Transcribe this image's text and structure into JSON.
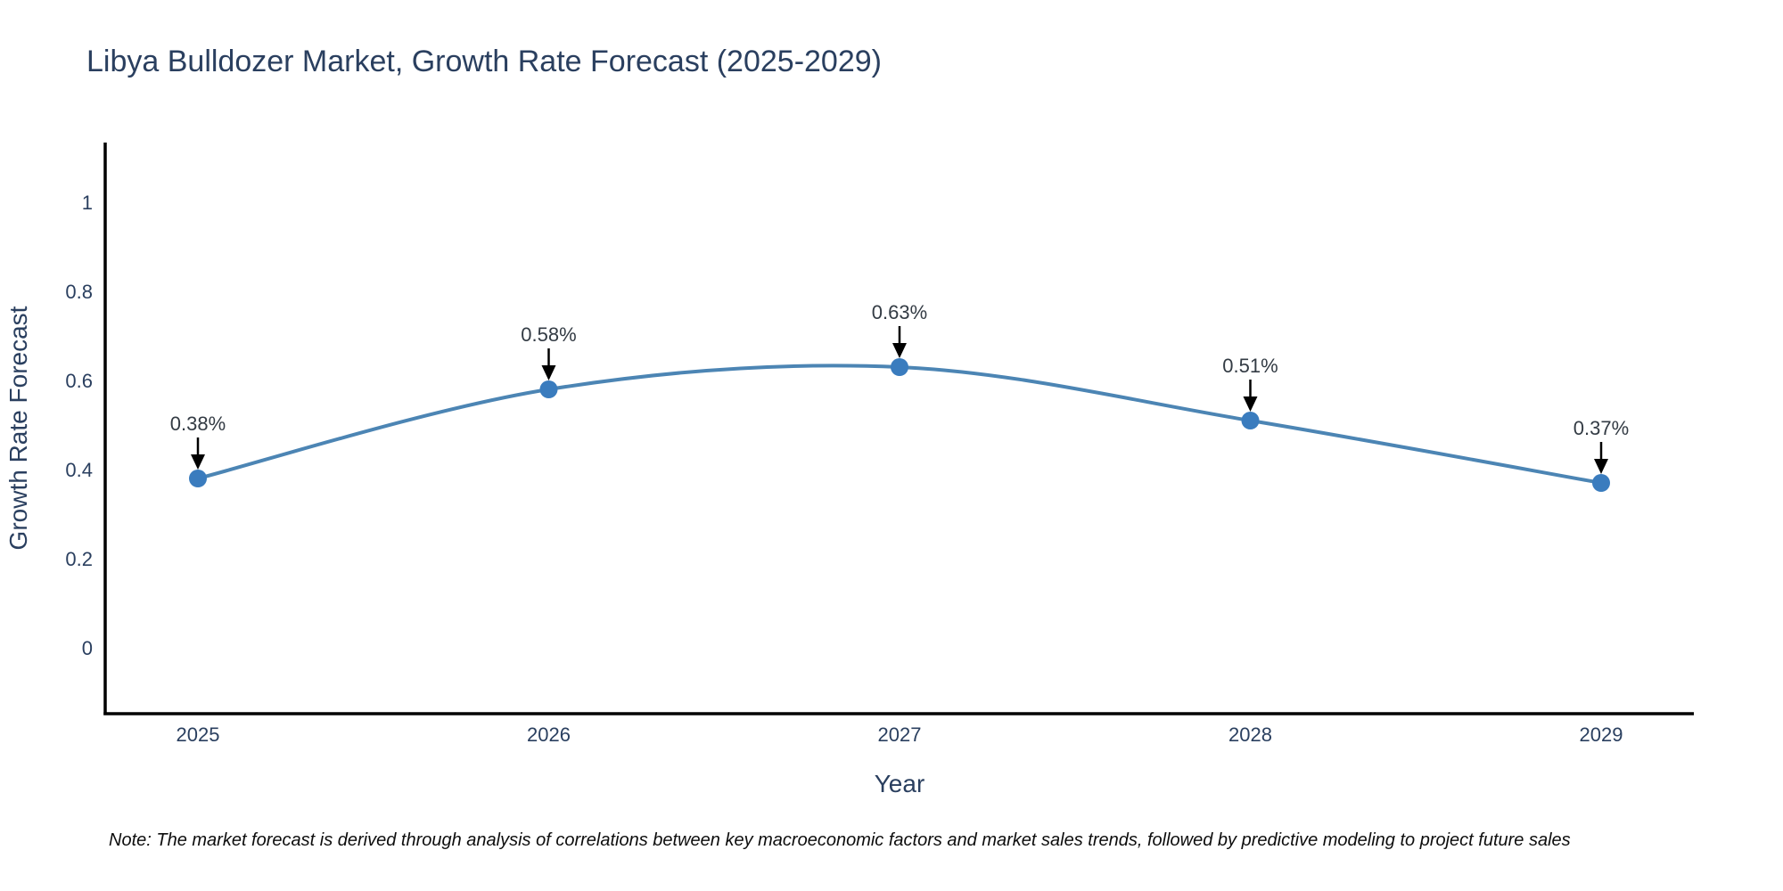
{
  "title": "Libya Bulldozer Market, Growth Rate Forecast (2025-2029)",
  "note": "Note: The market forecast is derived through analysis of correlations between key macroeconomic factors and market sales trends, followed by predictive modeling to project future sales",
  "chart_data": {
    "type": "line",
    "title": "Libya Bulldozer Market, Growth Rate Forecast (2025-2029)",
    "xlabel": "Year",
    "ylabel": "Growth Rate Forecast",
    "categories": [
      "2025",
      "2026",
      "2027",
      "2028",
      "2029"
    ],
    "values": [
      0.38,
      0.58,
      0.63,
      0.51,
      0.37
    ],
    "point_labels": [
      "0.38%",
      "0.58%",
      "0.63%",
      "0.51%",
      "0.37%"
    ],
    "ytick_labels": [
      "0",
      "0.2",
      "0.4",
      "0.6",
      "0.8",
      "1"
    ],
    "ytick_values": [
      0,
      0.2,
      0.4,
      0.6,
      0.8,
      1
    ],
    "ylim": [
      -0.148,
      1.134
    ],
    "grid": false,
    "legend": "none",
    "line_shape": "spline",
    "colors": {
      "line": "#4c85b4",
      "marker": "#3a7cbe",
      "axis_line": "#000000",
      "tick_text": "#2a3f5f",
      "axis_title_text": "#2a3f5f",
      "title_text": "#2a3f5f",
      "annotation_text": "#333b44",
      "arrow": "#000000",
      "background": "#ffffff"
    }
  }
}
